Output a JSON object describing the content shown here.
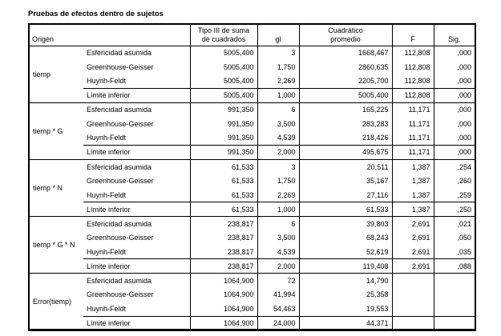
{
  "title": "Pruebas de efectos dentro de sujetos",
  "header": {
    "origin": "Origen",
    "ss_line1": "Tipo III de suma",
    "ss_line2": "de cuadrados",
    "gl": "gl",
    "ms_line1": "Cuadrático",
    "ms_line2": "promedio",
    "f": "F",
    "sig": "Sig."
  },
  "blocks": [
    {
      "source": "tiemp",
      "rows": [
        [
          "Esfericidad asumida",
          "5005,400",
          "3",
          "1668,467",
          "112,808",
          ",000"
        ],
        [
          "Greenhouse-Geisser",
          "5005,400",
          "1,750",
          "2860,635",
          "112,808",
          ",000"
        ],
        [
          "Huynh-Feldt",
          "5005,400",
          "2,269",
          "2205,700",
          "112,808",
          ",000"
        ],
        [
          "Límite inferior",
          "5005,400",
          "1,000",
          "5005,400",
          "112,808",
          ",000"
        ]
      ]
    },
    {
      "source": "tiemp * G",
      "rows": [
        [
          "Esfericidad asumida",
          "991,350",
          "6",
          "165,225",
          "11,171",
          ",000"
        ],
        [
          "Greenhouse-Geisser",
          "991,350",
          "3,500",
          "283,283",
          "11,171",
          ",000"
        ],
        [
          "Huynh-Feldt",
          "991,350",
          "4,539",
          "218,426",
          "11,171",
          ",000"
        ],
        [
          "Límite inferior",
          "991,350",
          "2,000",
          "495,675",
          "11,171",
          ",000"
        ]
      ]
    },
    {
      "source": "tiemp * N",
      "rows": [
        [
          "Esfericidad asumida",
          "61,533",
          "3",
          "20,511",
          "1,387",
          ",254"
        ],
        [
          "Greenhouse-Geisser",
          "61,533",
          "1,750",
          "35,167",
          "1,387",
          ",260"
        ],
        [
          "Huynh-Feldt",
          "61,533",
          "2,269",
          "27,116",
          "1,387",
          ",259"
        ],
        [
          "Límite inferior",
          "61,533",
          "1,000",
          "61,533",
          "1,387",
          ",250"
        ]
      ]
    },
    {
      "source": "tiemp * G  * N",
      "rows": [
        [
          "Esfericidad asumida",
          "238,817",
          "6",
          "39,803",
          "2,691",
          ",021"
        ],
        [
          "Greenhouse-Geisser",
          "238,817",
          "3,500",
          "68,243",
          "2,691",
          ",050"
        ],
        [
          "Huynh-Feldt",
          "238,817",
          "4,539",
          "52,619",
          "2,691",
          ",035"
        ],
        [
          "Límite inferior",
          "238,817",
          "2,000",
          "119,408",
          "2,691",
          ",088"
        ]
      ]
    },
    {
      "source": "Error(tiemp)",
      "rows": [
        [
          "Esfericidad asumida",
          "1064,900",
          "72",
          "14,790",
          "",
          ""
        ],
        [
          "Greenhouse-Geisser",
          "1064,900",
          "41,994",
          "25,358",
          "",
          ""
        ],
        [
          "Huynh-Feldt",
          "1064,900",
          "54,463",
          "19,553",
          "",
          ""
        ],
        [
          "Límite inferior",
          "1064,900",
          "24,000",
          "44,371",
          "",
          ""
        ]
      ]
    }
  ]
}
